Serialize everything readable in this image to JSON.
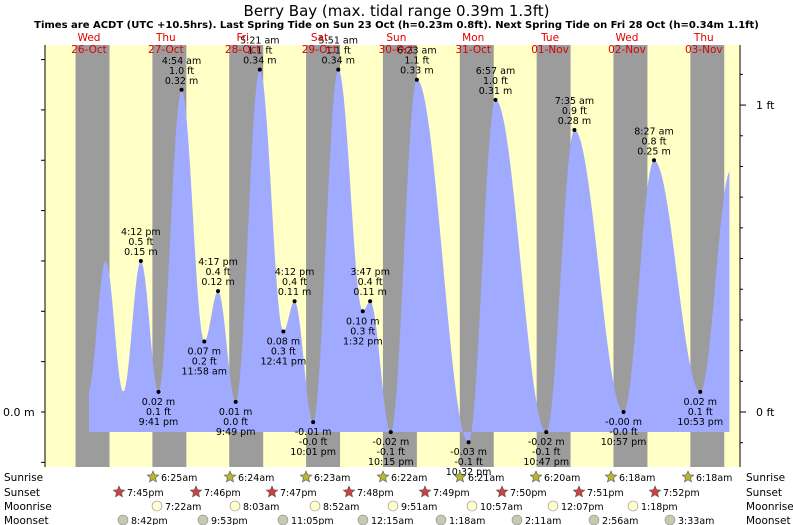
{
  "title": "Berry Bay (max. tidal range 0.39m 1.3ft)",
  "subtitle": "Times are ACDT (UTC +10.5hrs). Last Spring Tide on Sun 23 Oct (h=0.23m 0.8ft). Next Spring Tide on Fri 28 Oct (h=0.34m 1.1ft)",
  "colors": {
    "day": "#ffffc6",
    "night": "#9c9c9c",
    "tide": "#a0aaff",
    "daylabel": "#e00000",
    "sun": "#b8b830",
    "sunset": "#d04040",
    "moon": "#ffffd0",
    "moonset": "#c8c8b0"
  },
  "days": [
    {
      "dow": "Wed",
      "date": "26-Oct"
    },
    {
      "dow": "Thu",
      "date": "27-Oct"
    },
    {
      "dow": "Fri",
      "date": "28-Oct"
    },
    {
      "dow": "Sat",
      "date": "29-Oct"
    },
    {
      "dow": "Sun",
      "date": "30-Oct"
    },
    {
      "dow": "Mon",
      "date": "31-Oct"
    },
    {
      "dow": "Tue",
      "date": "01-Nov"
    },
    {
      "dow": "Wed",
      "date": "02-Nov"
    },
    {
      "dow": "Thu",
      "date": "03-Nov"
    }
  ],
  "chart_data": {
    "type": "area",
    "title": "Berry Bay (max. tidal range 0.39m 1.3ft)",
    "y_left_label": "0.0 m",
    "y_right_labels": [
      "1 ft",
      "0 ft"
    ],
    "y_right_values_m": [
      0.3048,
      0.0
    ],
    "ylim_m": [
      -0.03,
      0.42
    ],
    "x_unit": "hours from 26-Oct 00:00",
    "xlim": [
      -12.5,
      202.5
    ],
    "sunrise_hour_local": 6.4,
    "sunset_hour_local": 19.8,
    "tides": [
      {
        "t": 16.2,
        "h": 0.15,
        "type": "high",
        "lines": [
          "4:12 pm",
          "0.5 ft",
          "0.15 m"
        ]
      },
      {
        "t": 21.7,
        "h": 0.02,
        "type": "low",
        "lines": [
          "0.02 m",
          "0.1 ft",
          "9:41 pm"
        ]
      },
      {
        "t": 28.9,
        "h": 0.32,
        "type": "high",
        "lines": [
          "4:54 am",
          "1.0 ft",
          "0.32 m"
        ]
      },
      {
        "t": 36.0,
        "h": 0.07,
        "type": "low",
        "lines": [
          "0.07 m",
          "0.2 ft",
          "11:58 am"
        ]
      },
      {
        "t": 40.3,
        "h": 0.12,
        "type": "high",
        "lines": [
          "4:17 pm",
          "0.4 ft",
          "0.12 m"
        ]
      },
      {
        "t": 45.8,
        "h": 0.01,
        "type": "low",
        "lines": [
          "0.01 m",
          "0.0 ft",
          "9:49 pm"
        ]
      },
      {
        "t": 53.35,
        "h": 0.34,
        "type": "high",
        "lines": [
          "5:21 am",
          "1.1 ft",
          "0.34 m"
        ]
      },
      {
        "t": 60.7,
        "h": 0.08,
        "type": "low",
        "lines": [
          "0.08 m",
          "0.3 ft",
          "12:41 pm"
        ]
      },
      {
        "t": 64.2,
        "h": 0.11,
        "type": "high",
        "lines": [
          "4:12 pm",
          "0.4 ft",
          "0.11 m"
        ]
      },
      {
        "t": 70.0,
        "h": -0.01,
        "type": "low",
        "lines": [
          "-0.01 m",
          "-0.0 ft",
          "10:01 pm"
        ]
      },
      {
        "t": 77.85,
        "h": 0.34,
        "type": "high",
        "lines": [
          "5:51 am",
          "1.1 ft",
          "0.34 m"
        ]
      },
      {
        "t": 85.5,
        "h": 0.1,
        "type": "low",
        "lines": [
          "0.10 m",
          "0.3 ft",
          "1:32 pm"
        ]
      },
      {
        "t": 87.8,
        "h": 0.11,
        "type": "high",
        "lines": [
          "3:47 pm",
          "0.4 ft",
          "0.11 m"
        ]
      },
      {
        "t": 94.25,
        "h": -0.02,
        "type": "low",
        "lines": [
          "-0.02 m",
          "-0.1 ft",
          "10:15 pm"
        ]
      },
      {
        "t": 102.4,
        "h": 0.33,
        "type": "high",
        "lines": [
          "6:23 am",
          "1.1 ft",
          "0.33 m"
        ]
      },
      {
        "t": 118.55,
        "h": -0.03,
        "type": "low",
        "lines": [
          "-0.03 m",
          "-0.1 ft",
          "10:32 pm"
        ]
      },
      {
        "t": 126.95,
        "h": 0.31,
        "type": "high",
        "lines": [
          "6:57 am",
          "1.0 ft",
          "0.31 m"
        ]
      },
      {
        "t": 142.8,
        "h": -0.02,
        "type": "low",
        "lines": [
          "-0.02 m",
          "-0.1 ft",
          "10:47 pm"
        ]
      },
      {
        "t": 151.6,
        "h": 0.28,
        "type": "high",
        "lines": [
          "7:35 am",
          "0.9 ft",
          "0.28 m"
        ]
      },
      {
        "t": 166.95,
        "h": -0.0,
        "type": "low",
        "lines": [
          "-0.00 m",
          "-0.0 ft",
          "10:57 pm"
        ]
      },
      {
        "t": 176.45,
        "h": 0.25,
        "type": "high",
        "lines": [
          "8:27 am",
          "0.8 ft",
          "0.25 m"
        ]
      },
      {
        "t": 190.9,
        "h": 0.02,
        "type": "low",
        "lines": [
          "0.02 m",
          "0.1 ft",
          "10:53 pm"
        ]
      }
    ]
  },
  "bottom_rows": {
    "labels": [
      "Sunrise",
      "Sunset",
      "Moonrise",
      "Moonset"
    ],
    "sunrise": [
      "6:25am",
      "6:24am",
      "6:23am",
      "6:22am",
      "6:21am",
      "6:20am",
      "6:18am",
      "6:18am"
    ],
    "sunset": [
      "7:45pm",
      "7:46pm",
      "7:47pm",
      "7:48pm",
      "7:49pm",
      "7:50pm",
      "7:51pm",
      "7:52pm"
    ],
    "moonrise": [
      "7:22am",
      "8:03am",
      "8:52am",
      "9:51am",
      "10:57am",
      "12:07pm",
      "1:18pm"
    ],
    "moonset": [
      "8:42pm",
      "9:53pm",
      "11:05pm",
      "12:15am",
      "1:18am",
      "2:11am",
      "2:56am",
      "3:33am"
    ]
  }
}
